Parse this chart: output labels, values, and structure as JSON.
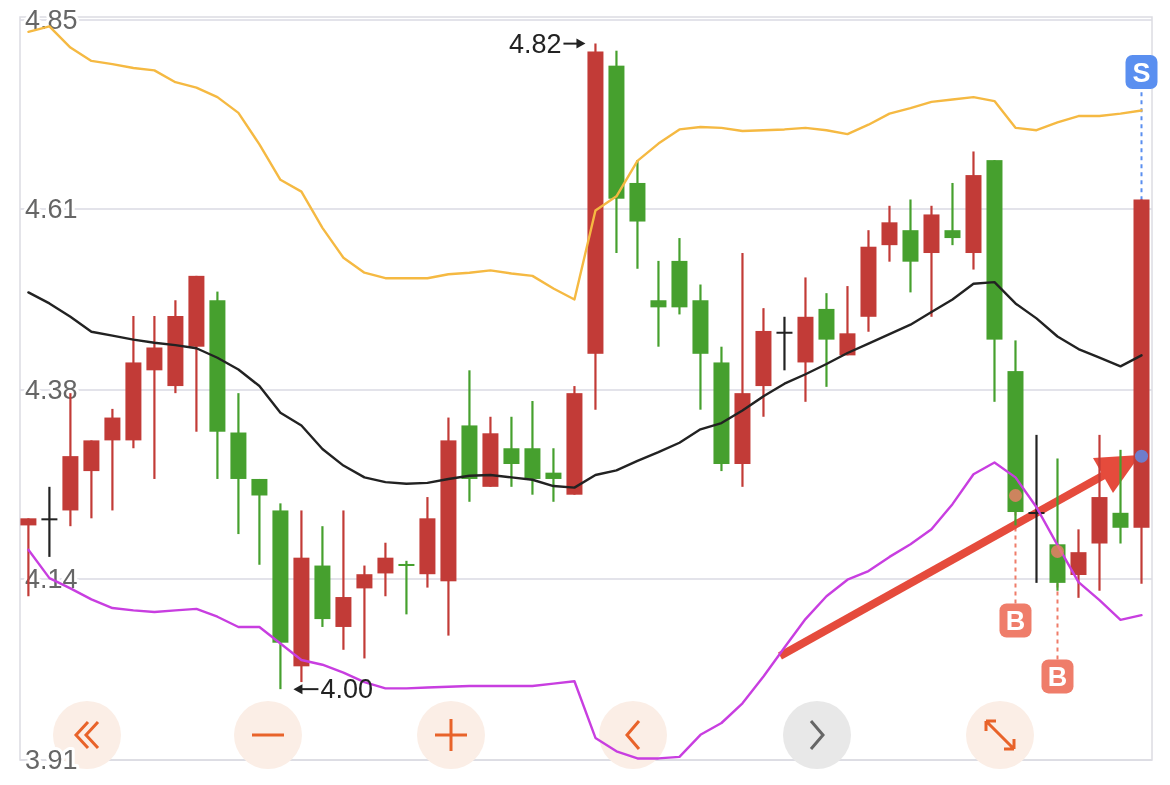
{
  "chart_data": {
    "type": "candlestick",
    "categories": [
      null,
      null,
      null,
      null,
      null,
      null,
      null,
      null,
      null,
      null,
      null,
      null,
      null,
      null,
      null,
      null,
      null,
      null,
      null,
      null,
      null,
      null,
      null,
      null,
      null,
      null,
      null,
      null,
      null,
      null,
      null,
      null,
      null,
      null,
      null,
      null,
      null,
      null,
      null,
      null,
      null,
      null,
      null,
      null,
      null,
      null,
      null,
      null,
      null,
      null,
      null,
      null,
      null,
      null
    ],
    "ohlc": [
      [
        4.208,
        4.217,
        4.118,
        4.217
      ],
      [
        4.217,
        4.257,
        4.168,
        4.217
      ],
      [
        4.227,
        4.376,
        4.207,
        4.296
      ],
      [
        4.277,
        4.316,
        4.217,
        4.316
      ],
      [
        4.316,
        4.356,
        4.227,
        4.345
      ],
      [
        4.316,
        4.474,
        4.306,
        4.415
      ],
      [
        4.405,
        4.474,
        4.267,
        4.434
      ],
      [
        4.385,
        4.494,
        4.376,
        4.474
      ],
      [
        4.435,
        4.525,
        4.327,
        4.525
      ],
      [
        4.494,
        4.505,
        4.267,
        4.327
      ],
      [
        4.326,
        4.376,
        4.197,
        4.267
      ],
      [
        4.267,
        4.267,
        4.158,
        4.246
      ],
      [
        4.227,
        4.236,
        4.0,
        4.059
      ],
      [
        4.029,
        4.227,
        4.009,
        4.167
      ],
      [
        4.157,
        4.207,
        4.079,
        4.089
      ],
      [
        4.079,
        4.227,
        4.05,
        4.117
      ],
      [
        4.128,
        4.157,
        4.039,
        4.146
      ],
      [
        4.147,
        4.186,
        4.118,
        4.167
      ],
      [
        4.159,
        4.163,
        4.095,
        4.157
      ],
      [
        4.146,
        4.244,
        4.129,
        4.217
      ],
      [
        4.137,
        4.345,
        4.068,
        4.316
      ],
      [
        4.335,
        4.405,
        4.238,
        4.267
      ],
      [
        4.257,
        4.346,
        4.257,
        4.325
      ],
      [
        4.306,
        4.346,
        4.257,
        4.286
      ],
      [
        4.306,
        4.366,
        4.247,
        4.267
      ],
      [
        4.275,
        4.306,
        4.238,
        4.267
      ],
      [
        4.247,
        4.385,
        4.247,
        4.376
      ],
      [
        4.426,
        4.82,
        4.355,
        4.81
      ],
      [
        4.792,
        4.811,
        4.554,
        4.623
      ],
      [
        4.643,
        4.672,
        4.534,
        4.594
      ],
      [
        4.494,
        4.544,
        4.435,
        4.485
      ],
      [
        4.544,
        4.573,
        4.476,
        4.485
      ],
      [
        4.494,
        4.514,
        4.355,
        4.426
      ],
      [
        4.415,
        4.435,
        4.277,
        4.286
      ],
      [
        4.286,
        4.554,
        4.257,
        4.376
      ],
      [
        4.385,
        4.484,
        4.346,
        4.455
      ],
      [
        4.454,
        4.473,
        4.405,
        4.454
      ],
      [
        4.415,
        4.523,
        4.365,
        4.473
      ],
      [
        4.483,
        4.503,
        4.384,
        4.444
      ],
      [
        4.424,
        4.512,
        4.424,
        4.452
      ],
      [
        4.473,
        4.583,
        4.454,
        4.562
      ],
      [
        4.564,
        4.614,
        4.543,
        4.593
      ],
      [
        4.583,
        4.622,
        4.504,
        4.543
      ],
      [
        4.554,
        4.614,
        4.473,
        4.603
      ],
      [
        4.583,
        4.643,
        4.564,
        4.573
      ],
      [
        4.554,
        4.683,
        4.533,
        4.653
      ],
      [
        4.672,
        4.672,
        4.365,
        4.444
      ],
      [
        4.404,
        4.443,
        4.208,
        4.225
      ],
      [
        4.225,
        4.323,
        4.135,
        4.225
      ],
      [
        4.184,
        4.293,
        4.125,
        4.135
      ],
      [
        4.145,
        4.203,
        4.116,
        4.174
      ],
      [
        4.185,
        4.323,
        4.125,
        4.244
      ],
      [
        4.224,
        4.304,
        4.185,
        4.205
      ],
      [
        4.205,
        4.622,
        4.134,
        4.622
      ]
    ],
    "colors": [
      "#c23b37",
      "#222222",
      "#c23b37",
      "#c23b37",
      "#c23b37",
      "#c23b37",
      "#c23b37",
      "#c23b37",
      "#c23b37",
      "#46a02e",
      "#46a02e",
      "#46a02e",
      "#46a02e",
      "#c23b37",
      "#46a02e",
      "#c23b37",
      "#c23b37",
      "#c23b37",
      "#46a02e",
      "#c23b37",
      "#c23b37",
      "#46a02e",
      "#c23b37",
      "#46a02e",
      "#46a02e",
      "#46a02e",
      "#c23b37",
      "#c23b37",
      "#46a02e",
      "#46a02e",
      "#46a02e",
      "#46a02e",
      "#46a02e",
      "#46a02e",
      "#c23b37",
      "#c23b37",
      "#222222",
      "#c23b37",
      "#46a02e",
      "#c23b37",
      "#c23b37",
      "#c23b37",
      "#46a02e",
      "#c23b37",
      "#46a02e",
      "#c23b37",
      "#46a02e",
      "#46a02e",
      "#222222",
      "#46a02e",
      "#c23b37",
      "#c23b37",
      "#46a02e",
      "#c23b37"
    ],
    "ylim": [
      3.91,
      4.85
    ],
    "yticks": [
      4.85,
      4.61,
      4.38,
      4.14,
      3.91
    ],
    "grid": "y",
    "tick_labels": "y",
    "annotations": [
      "4.82",
      "4.00"
    ],
    "series": [
      {
        "type": "line",
        "color": "#f5b942",
        "values": [
          4.835,
          4.842,
          4.815,
          4.798,
          4.794,
          4.789,
          4.786,
          4.771,
          4.764,
          4.752,
          4.732,
          4.692,
          4.647,
          4.632,
          4.586,
          4.548,
          4.529,
          4.522,
          4.522,
          4.522,
          4.527,
          4.529,
          4.532,
          4.528,
          4.525,
          4.509,
          4.495,
          4.608,
          4.626,
          4.671,
          4.693,
          4.711,
          4.714,
          4.713,
          4.709,
          4.71,
          4.711,
          4.713,
          4.71,
          4.705,
          4.717,
          4.731,
          4.738,
          4.746,
          4.749,
          4.752,
          4.747,
          4.713,
          4.71,
          4.72,
          4.728,
          4.728,
          4.731,
          4.735
        ]
      },
      {
        "type": "line",
        "color": "#222222",
        "values": [
          4.504,
          4.49,
          4.473,
          4.454,
          4.449,
          4.444,
          4.44,
          4.437,
          4.433,
          4.421,
          4.406,
          4.385,
          4.351,
          4.335,
          4.305,
          4.284,
          4.269,
          4.263,
          4.261,
          4.262,
          4.267,
          4.271,
          4.272,
          4.269,
          4.266,
          4.258,
          4.256,
          4.272,
          4.278,
          4.29,
          4.301,
          4.313,
          4.33,
          4.338,
          4.354,
          4.372,
          4.388,
          4.4,
          4.413,
          4.427,
          4.439,
          4.451,
          4.463,
          4.479,
          4.495,
          4.515,
          4.517,
          4.49,
          4.471,
          4.448,
          4.432,
          4.421,
          4.41,
          4.424
        ]
      },
      {
        "type": "line",
        "color": "#c83ee0",
        "values": [
          4.177,
          4.141,
          4.128,
          4.114,
          4.103,
          4.1,
          4.098,
          4.1,
          4.102,
          4.092,
          4.079,
          4.079,
          4.058,
          4.037,
          4.031,
          4.021,
          4.009,
          4.001,
          4.001,
          4.002,
          4.003,
          4.004,
          4.004,
          4.004,
          4.004,
          4.007,
          4.01,
          3.938,
          3.921,
          3.912,
          3.912,
          3.914,
          3.942,
          3.957,
          3.982,
          4.016,
          4.053,
          4.089,
          4.118,
          4.139,
          4.15,
          4.168,
          4.184,
          4.203,
          4.235,
          4.273,
          4.288,
          4.269,
          4.231,
          4.183,
          4.136,
          4.113,
          4.088,
          4.094
        ]
      },
      {
        "type": "scatter",
        "name": "B",
        "color": "#ef7d6a",
        "values": [
          null,
          null,
          null,
          null,
          null,
          null,
          null,
          null,
          null,
          null,
          null,
          null,
          null,
          null,
          null,
          null,
          null,
          null,
          null,
          null,
          null,
          null,
          null,
          null,
          null,
          null,
          null,
          null,
          null,
          null,
          null,
          null,
          null,
          null,
          null,
          null,
          null,
          null,
          null,
          null,
          null,
          null,
          null,
          null,
          null,
          null,
          null,
          4.246,
          null,
          4.175,
          null,
          null,
          null,
          null
        ]
      },
      {
        "type": "scatter",
        "name": "S",
        "color": "#5a8ff0",
        "values": [
          null,
          null,
          null,
          null,
          null,
          null,
          null,
          null,
          null,
          null,
          null,
          null,
          null,
          null,
          null,
          null,
          null,
          null,
          null,
          null,
          null,
          null,
          null,
          null,
          null,
          null,
          null,
          null,
          null,
          null,
          null,
          null,
          null,
          null,
          null,
          null,
          null,
          null,
          null,
          null,
          null,
          null,
          null,
          null,
          null,
          null,
          null,
          null,
          null,
          null,
          null,
          null,
          null,
          4.296
        ]
      }
    ]
  }
}
